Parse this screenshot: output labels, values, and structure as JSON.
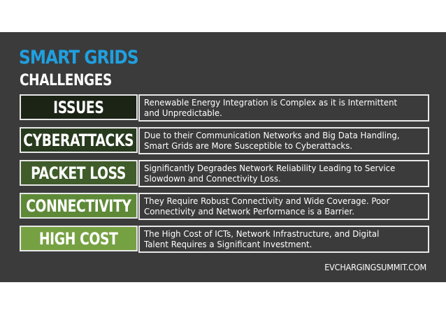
{
  "title": "SMART GRIDS",
  "subtitle": "CHALLENGES",
  "colors": {
    "background": "#3b3b3c",
    "title_accent": "#1fa0e0"
  },
  "rows": [
    {
      "label": "ISSUES",
      "color": "#1b2415",
      "line1": "Renewable Energy Integration is Complex as it is Intermittent",
      "line2": "and Unpredictable."
    },
    {
      "label": "CYBERATTACKS",
      "color": "#283a1e",
      "line1": "Due to their Communication Networks and Big Data Handling,",
      "line2": "Smart Grids are More Susceptible to Cyberattacks."
    },
    {
      "label": "PACKET LOSS",
      "color": "#3f5c2a",
      "line1": "Significantly Degrades Network Reliability Leading to Service",
      "line2": "Slowdown and Connectivity Loss."
    },
    {
      "label": "CONNECTIVITY",
      "color": "#5e8a38",
      "line1": "They Require Robust Connectivity and Wide Coverage. Poor",
      "line2": "Connectivity and Network Performance is a Barrier."
    },
    {
      "label": "HIGH COST",
      "color": "#76a142",
      "line1": "The High Cost of ICTs, Network Infrastructure, and Digital",
      "line2": "Talent Requires a Significant Investment."
    }
  ],
  "footer": "EVCHARGINGSUMMIT.COM"
}
